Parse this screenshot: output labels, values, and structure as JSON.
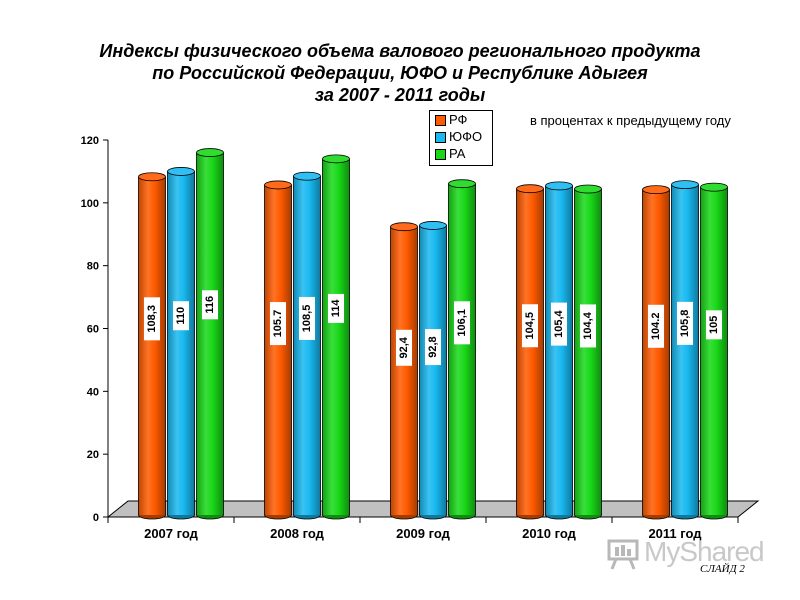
{
  "title_lines": [
    "Индексы физического объема валового  регионального продукта",
    "по Российской Федерации, ЮФО  и  Республике Адыгея",
    "за 2007 - 2011 годы"
  ],
  "subtitle": "в процентах к предыдущему году",
  "slide_label": "СЛАЙД  2",
  "logo_text": "MyShared",
  "chart_data": {
    "type": "bar",
    "title": "Индексы физического объема валового  регионального продукта по Российской Федерации, ЮФО  и  Республике Адыгея за 2007 - 2011 годы",
    "categories": [
      "2007 год",
      "2008 год",
      "2009 год",
      "2010 год",
      "2011 год"
    ],
    "series": [
      {
        "name": "РФ",
        "color": "#ff5a00",
        "values": [
          108.3,
          105.7,
          92.4,
          104.5,
          104.2
        ],
        "labels": [
          "108,3",
          "105.7",
          "92,4",
          "104,5",
          "104.2"
        ]
      },
      {
        "name": "ЮФО",
        "color": "#18b8f0",
        "values": [
          110,
          108.5,
          92.8,
          105.4,
          105.8
        ],
        "labels": [
          "110",
          "108,5",
          "92,8",
          "105,4",
          "105,8"
        ]
      },
      {
        "name": "РА",
        "color": "#18d818",
        "values": [
          116,
          114,
          106.1,
          104.4,
          105
        ],
        "labels": [
          "116",
          "114",
          "106,1",
          "104,4",
          "105"
        ]
      }
    ],
    "yticks": [
      0,
      20,
      40,
      60,
      80,
      100,
      120
    ],
    "ylim": [
      0,
      120
    ],
    "grid": false,
    "legend_position": "top-center",
    "xlabel": "",
    "ylabel": ""
  }
}
